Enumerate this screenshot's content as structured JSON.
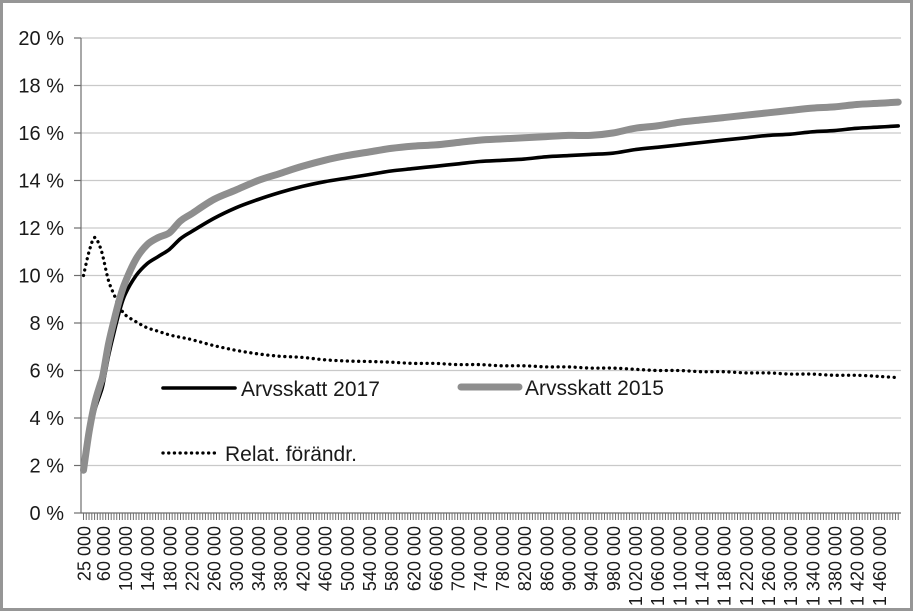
{
  "chart_data": {
    "type": "line",
    "title": "",
    "xlabel": "",
    "ylabel": "",
    "grid": true,
    "legend_position": "inside-plot",
    "ylim": [
      0,
      20
    ],
    "y_tick_step": 2,
    "y_ticks": [
      "0 %",
      "2 %",
      "4 %",
      "6 %",
      "8 %",
      "10 %",
      "12 %",
      "14 %",
      "16 %",
      "18 %",
      "20 %"
    ],
    "x_axis": {
      "min": 20500,
      "max": 1500000,
      "minor_tick_start": 25000,
      "minor_tick_step": 5000,
      "minor_tick_end": 1495000
    },
    "x_tick_labels": [
      "25 000",
      "60 000",
      "100 000",
      "140 000",
      "180 000",
      "220 000",
      "260 000",
      "300 000",
      "340 000",
      "380 000",
      "420 000",
      "460 000",
      "500 000",
      "540 000",
      "580 000",
      "620 000",
      "660 000",
      "700 000",
      "740 000",
      "780 000",
      "820 000",
      "860 000",
      "900 000",
      "940 000",
      "980 000",
      "1 020 000",
      "1 060 000",
      "1 100 000",
      "1 140 000",
      "1 180 000",
      "1 220 000",
      "1 260 000",
      "1 300 000",
      "1 340 000",
      "1 380 000",
      "1 420 000",
      "1 460 000"
    ],
    "x_tick_values": [
      25000,
      60000,
      100000,
      140000,
      180000,
      220000,
      260000,
      300000,
      340000,
      380000,
      420000,
      460000,
      500000,
      540000,
      580000,
      620000,
      660000,
      700000,
      740000,
      780000,
      820000,
      860000,
      900000,
      940000,
      980000,
      1020000,
      1060000,
      1100000,
      1140000,
      1180000,
      1220000,
      1260000,
      1300000,
      1340000,
      1380000,
      1420000,
      1460000
    ],
    "x": [
      25000,
      35000,
      45000,
      55000,
      60000,
      70000,
      80000,
      90000,
      100000,
      120000,
      140000,
      160000,
      180000,
      200000,
      220000,
      260000,
      300000,
      340000,
      380000,
      420000,
      460000,
      500000,
      540000,
      580000,
      620000,
      660000,
      700000,
      740000,
      780000,
      820000,
      860000,
      900000,
      940000,
      980000,
      1020000,
      1060000,
      1100000,
      1140000,
      1180000,
      1220000,
      1260000,
      1300000,
      1340000,
      1380000,
      1420000,
      1460000,
      1495000
    ],
    "series": [
      {
        "name": "Arvsskatt 2017",
        "style": "solid",
        "color": "#000000",
        "width": 3.6,
        "values": [
          1.8,
          3.2,
          4.3,
          5.0,
          5.4,
          6.6,
          7.6,
          8.5,
          9.2,
          10.0,
          10.5,
          10.8,
          11.1,
          11.55,
          11.85,
          12.4,
          12.85,
          13.2,
          13.5,
          13.75,
          13.95,
          14.1,
          14.25,
          14.4,
          14.5,
          14.6,
          14.7,
          14.8,
          14.85,
          14.9,
          15.0,
          15.05,
          15.1,
          15.15,
          15.3,
          15.4,
          15.5,
          15.6,
          15.7,
          15.8,
          15.9,
          15.95,
          16.05,
          16.1,
          16.2,
          16.25,
          16.3
        ]
      },
      {
        "name": "Arvsskatt 2015",
        "style": "solid",
        "color": "#8e8e8e",
        "width": 7,
        "values": [
          1.8,
          3.4,
          4.6,
          5.4,
          5.8,
          7.1,
          8.1,
          9.0,
          9.7,
          10.7,
          11.3,
          11.6,
          11.8,
          12.3,
          12.6,
          13.2,
          13.6,
          14.0,
          14.3,
          14.6,
          14.85,
          15.05,
          15.2,
          15.35,
          15.45,
          15.5,
          15.6,
          15.7,
          15.75,
          15.8,
          15.85,
          15.9,
          15.9,
          16.0,
          16.2,
          16.3,
          16.45,
          16.55,
          16.65,
          16.75,
          16.85,
          16.95,
          17.05,
          17.1,
          17.2,
          17.25,
          17.3
        ]
      },
      {
        "name": "Relat. förändr.",
        "style": "dotted",
        "color": "#000000",
        "width": 3.3,
        "values": [
          10.0,
          11.0,
          11.6,
          11.2,
          10.8,
          9.8,
          9.2,
          8.7,
          8.35,
          8.05,
          7.8,
          7.65,
          7.5,
          7.4,
          7.3,
          7.05,
          6.85,
          6.7,
          6.6,
          6.55,
          6.45,
          6.4,
          6.38,
          6.35,
          6.3,
          6.3,
          6.25,
          6.25,
          6.2,
          6.2,
          6.15,
          6.15,
          6.1,
          6.1,
          6.05,
          6.0,
          6.0,
          5.95,
          5.95,
          5.9,
          5.9,
          5.85,
          5.85,
          5.8,
          5.8,
          5.75,
          5.7
        ]
      }
    ]
  },
  "legend": {
    "items": [
      {
        "label": "Arvsskatt 2017"
      },
      {
        "label": "Arvsskatt 2015"
      },
      {
        "label": "Relat. förändr."
      }
    ]
  },
  "colors": {
    "series_2017": "#000000",
    "series_2015": "#8e8e8e",
    "series_relative_change": "#000000",
    "gridline": "#c9c9c9",
    "axis": "#6e6e6e",
    "text": "#1a1a1a",
    "frame_border": "#969696",
    "background": "#ffffff"
  }
}
